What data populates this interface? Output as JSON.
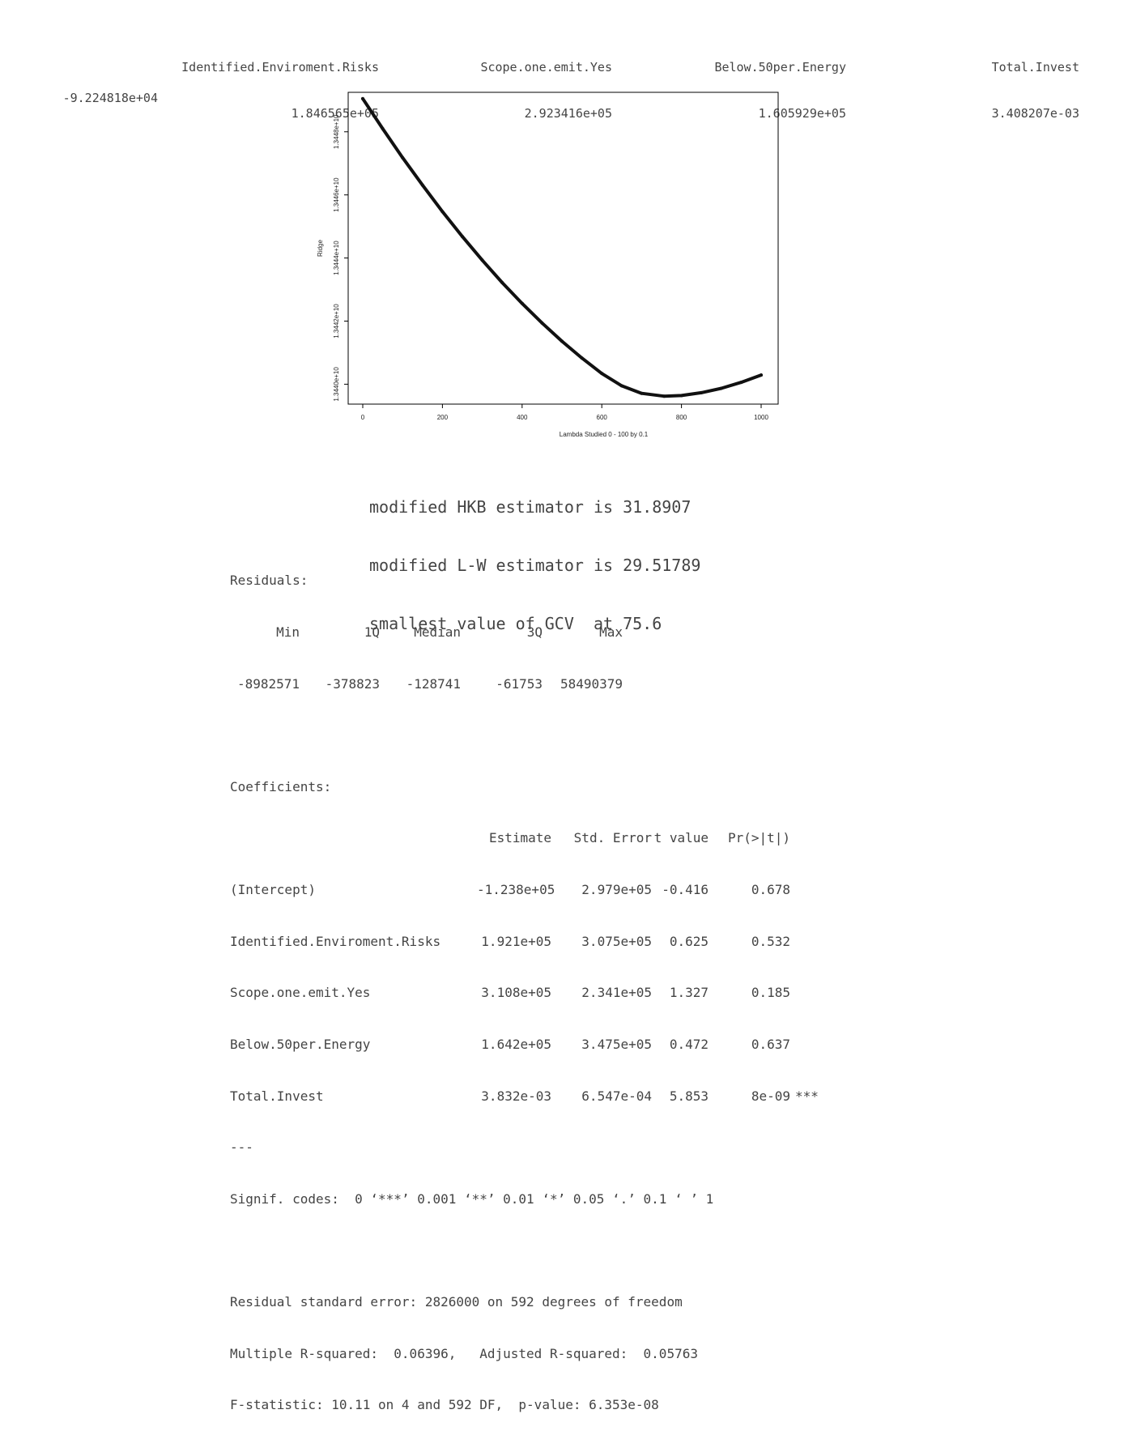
{
  "top_coefficients": {
    "columns": [
      {
        "name": "",
        "value": "-9.224818e+04"
      },
      {
        "name": "Identified.Enviroment.Risks",
        "value": "1.846565e+05"
      },
      {
        "name": "Scope.one.emit.Yes",
        "value": "2.923416e+05"
      },
      {
        "name": "Below.50per.Energy",
        "value": "1.605929e+05"
      },
      {
        "name": "Total.Invest",
        "value": "3.408207e-03"
      }
    ]
  },
  "chart_data": {
    "type": "line",
    "title": "",
    "xlabel": "Lambda Studied 0 - 100 by 0.1",
    "ylabel": "Ridge",
    "xlim": [
      0,
      1000
    ],
    "ylim": [
      13439300000,
      13449500000
    ],
    "x_ticks": [
      0,
      200,
      400,
      600,
      800,
      1000
    ],
    "x_tick_labels": [
      "0",
      "200",
      "400",
      "600",
      "800",
      "1000"
    ],
    "y_ticks": [
      13440000000,
      13442000000,
      13444000000,
      13446000000,
      13448000000
    ],
    "y_tick_labels": [
      "1.3440e+10",
      "1.3442e+10",
      "1.3444e+10",
      "1.3446e+10",
      "1.3448e+10"
    ],
    "grid": false,
    "series": [
      {
        "x": [
          0,
          50,
          100,
          150,
          200,
          250,
          300,
          350,
          400,
          450,
          500,
          550,
          600,
          650,
          700,
          756,
          800,
          850,
          900,
          950,
          1000
        ],
        "y": [
          13449050000,
          13448100000,
          13447180000,
          13446310000,
          13445470000,
          13444680000,
          13443930000,
          13443220000,
          13442560000,
          13441940000,
          13441360000,
          13440830000,
          13440340000,
          13439950000,
          13439710000,
          13439620000,
          13439640000,
          13439730000,
          13439870000,
          13440060000,
          13440290000
        ]
      }
    ]
  },
  "estimators": {
    "hkb": "modified HKB estimator is 31.8907",
    "lw": "modified L-W estimator is 29.51789",
    "gcv": "smallest value of GCV  at 75.6"
  },
  "residuals": {
    "title": "Residuals:",
    "headers": [
      "Min",
      "1Q",
      "Median",
      "3Q",
      "Max"
    ],
    "values": [
      "-8982571",
      "-378823",
      "-128741",
      "-61753",
      "58490379"
    ]
  },
  "coefficients": {
    "title": "Coefficients:",
    "headers": [
      "Estimate",
      "Std. Error",
      "t value",
      "Pr(>|t|)"
    ],
    "rows": [
      {
        "name": "(Intercept)",
        "estimate": "-1.238e+05",
        "se": "2.979e+05",
        "t": "-0.416",
        "p": "0.678",
        "sig": ""
      },
      {
        "name": "Identified.Enviroment.Risks",
        "estimate": "1.921e+05",
        "se": "3.075e+05",
        "t": "0.625",
        "p": "0.532",
        "sig": ""
      },
      {
        "name": "Scope.one.emit.Yes",
        "estimate": "3.108e+05",
        "se": "2.341e+05",
        "t": "1.327",
        "p": "0.185",
        "sig": ""
      },
      {
        "name": "Below.50per.Energy",
        "estimate": "1.642e+05",
        "se": "3.475e+05",
        "t": "0.472",
        "p": "0.637",
        "sig": ""
      },
      {
        "name": "Total.Invest",
        "estimate": "3.832e-03",
        "se": "6.547e-04",
        "t": "5.853",
        "p": "8e-09",
        "sig": "***"
      }
    ],
    "separator": "---",
    "signif": "Signif. codes:  0 ‘***’ 0.001 ‘**’ 0.01 ‘*’ 0.05 ‘.’ 0.1 ‘ ’ 1"
  },
  "fit": {
    "rse": "Residual standard error: 2826000 on 592 degrees of freedom",
    "r2": "Multiple R-squared:  0.06396,   Adjusted R-squared:  0.05763",
    "f": "F-statistic: 10.11 on 4 and 592 DF,  p-value: 6.353e-08"
  }
}
